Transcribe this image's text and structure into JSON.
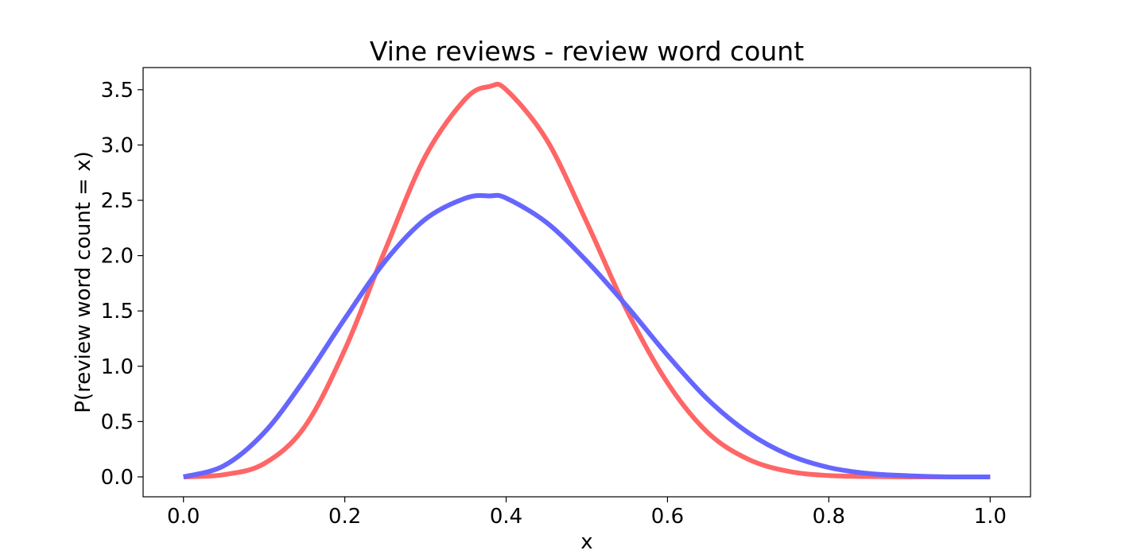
{
  "chart_data": {
    "type": "line",
    "title": "Vine reviews - review word count",
    "xlabel": "x",
    "ylabel": "P(review word count = x)",
    "xlim": [
      -0.05,
      1.05
    ],
    "ylim": [
      -0.18,
      3.7
    ],
    "xticks": [
      0.0,
      0.2,
      0.4,
      0.6,
      0.8,
      1.0
    ],
    "xtick_labels": [
      "0.0",
      "0.2",
      "0.4",
      "0.6",
      "0.8",
      "1.0"
    ],
    "yticks": [
      0.0,
      0.5,
      1.0,
      1.5,
      2.0,
      2.5,
      3.0,
      3.5
    ],
    "ytick_labels": [
      "0.0",
      "0.5",
      "1.0",
      "1.5",
      "2.0",
      "2.5",
      "3.0",
      "3.5"
    ],
    "grid": false,
    "legend": "none",
    "x": [
      0.0,
      0.05,
      0.1,
      0.15,
      0.2,
      0.25,
      0.3,
      0.35,
      0.38,
      0.4,
      0.45,
      0.5,
      0.55,
      0.6,
      0.65,
      0.7,
      0.75,
      0.8,
      0.85,
      0.9,
      0.95,
      1.0
    ],
    "series": [
      {
        "color": "#ff6666",
        "values": [
          0.0,
          0.02,
          0.12,
          0.45,
          1.15,
          2.05,
          2.9,
          3.42,
          3.53,
          3.5,
          3.05,
          2.3,
          1.5,
          0.85,
          0.4,
          0.16,
          0.05,
          0.012,
          0.003,
          0.0,
          0.0,
          0.0
        ]
      },
      {
        "color": "#6666ff",
        "values": [
          0.0,
          0.1,
          0.4,
          0.88,
          1.43,
          1.95,
          2.33,
          2.52,
          2.54,
          2.52,
          2.3,
          1.95,
          1.54,
          1.1,
          0.7,
          0.4,
          0.2,
          0.085,
          0.03,
          0.01,
          0.0,
          0.0
        ]
      }
    ]
  }
}
